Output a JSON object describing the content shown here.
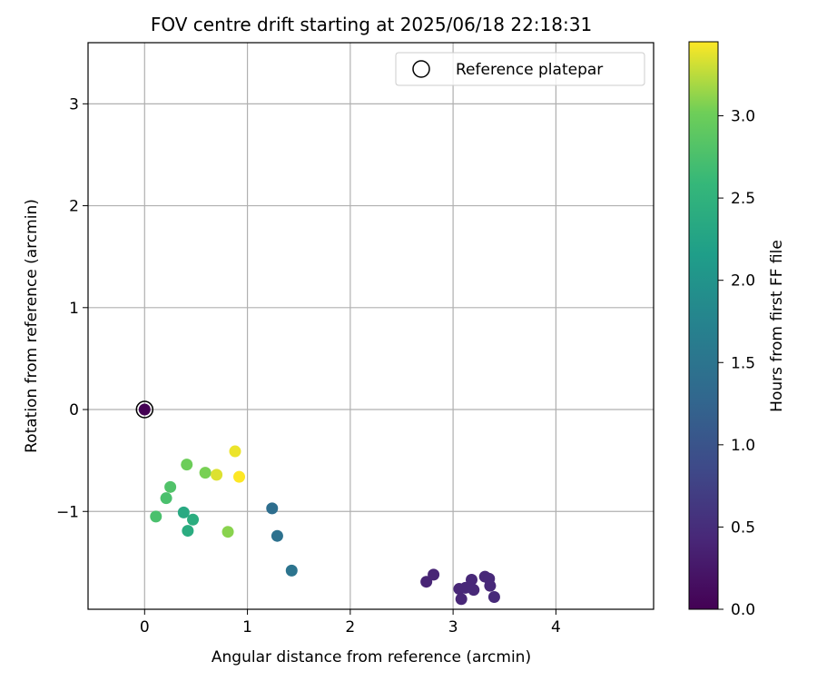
{
  "chart_data": {
    "type": "scatter",
    "title": "FOV centre drift starting at 2025/06/18 22:18:31",
    "xlabel": "Angular distance from reference (arcmin)",
    "ylabel": "Rotation from reference (arcmin)",
    "xlim": [
      -0.55,
      4.95
    ],
    "ylim": [
      -1.96,
      3.6
    ],
    "xticks": [
      0,
      1,
      2,
      3,
      4
    ],
    "yticks": [
      -1,
      0,
      1,
      2,
      3
    ],
    "grid": true,
    "legend": {
      "placement": "top-right",
      "entries": [
        "Reference platepar"
      ]
    },
    "colorbar": {
      "label": "Hours from first FF file",
      "min": 0,
      "max": 3.45,
      "ticks": [
        "0.0",
        "0.5",
        "1.0",
        "1.5",
        "2.0",
        "2.5",
        "3.0"
      ],
      "colormap": "viridis"
    },
    "reference_point": {
      "x": 0,
      "y": 0
    },
    "points": [
      {
        "x": 0.0,
        "y": 0.0,
        "hours": 0.0
      },
      {
        "x": 2.74,
        "y": -1.69,
        "hours": 0.4
      },
      {
        "x": 2.81,
        "y": -1.62,
        "hours": 0.4
      },
      {
        "x": 3.06,
        "y": -1.76,
        "hours": 0.42
      },
      {
        "x": 3.08,
        "y": -1.86,
        "hours": 0.42
      },
      {
        "x": 3.12,
        "y": -1.75,
        "hours": 0.43
      },
      {
        "x": 3.18,
        "y": -1.67,
        "hours": 0.43
      },
      {
        "x": 3.2,
        "y": -1.77,
        "hours": 0.44
      },
      {
        "x": 3.31,
        "y": -1.64,
        "hours": 0.44
      },
      {
        "x": 3.35,
        "y": -1.66,
        "hours": 0.45
      },
      {
        "x": 3.36,
        "y": -1.73,
        "hours": 0.45
      },
      {
        "x": 3.4,
        "y": -1.84,
        "hours": 0.46
      },
      {
        "x": 1.24,
        "y": -0.97,
        "hours": 1.4
      },
      {
        "x": 1.29,
        "y": -1.24,
        "hours": 1.45
      },
      {
        "x": 1.43,
        "y": -1.58,
        "hours": 1.5
      },
      {
        "x": 0.38,
        "y": -1.01,
        "hours": 2.35
      },
      {
        "x": 0.42,
        "y": -1.19,
        "hours": 2.4
      },
      {
        "x": 0.47,
        "y": -1.08,
        "hours": 2.42
      },
      {
        "x": 0.11,
        "y": -1.05,
        "hours": 2.75
      },
      {
        "x": 0.21,
        "y": -0.87,
        "hours": 2.75
      },
      {
        "x": 0.25,
        "y": -0.76,
        "hours": 2.8
      },
      {
        "x": 0.41,
        "y": -0.54,
        "hours": 3.0
      },
      {
        "x": 0.59,
        "y": -0.62,
        "hours": 3.05
      },
      {
        "x": 0.81,
        "y": -1.2,
        "hours": 3.1
      },
      {
        "x": 0.7,
        "y": -0.64,
        "hours": 3.35
      },
      {
        "x": 0.88,
        "y": -0.41,
        "hours": 3.4
      },
      {
        "x": 0.92,
        "y": -0.66,
        "hours": 3.45
      }
    ]
  }
}
